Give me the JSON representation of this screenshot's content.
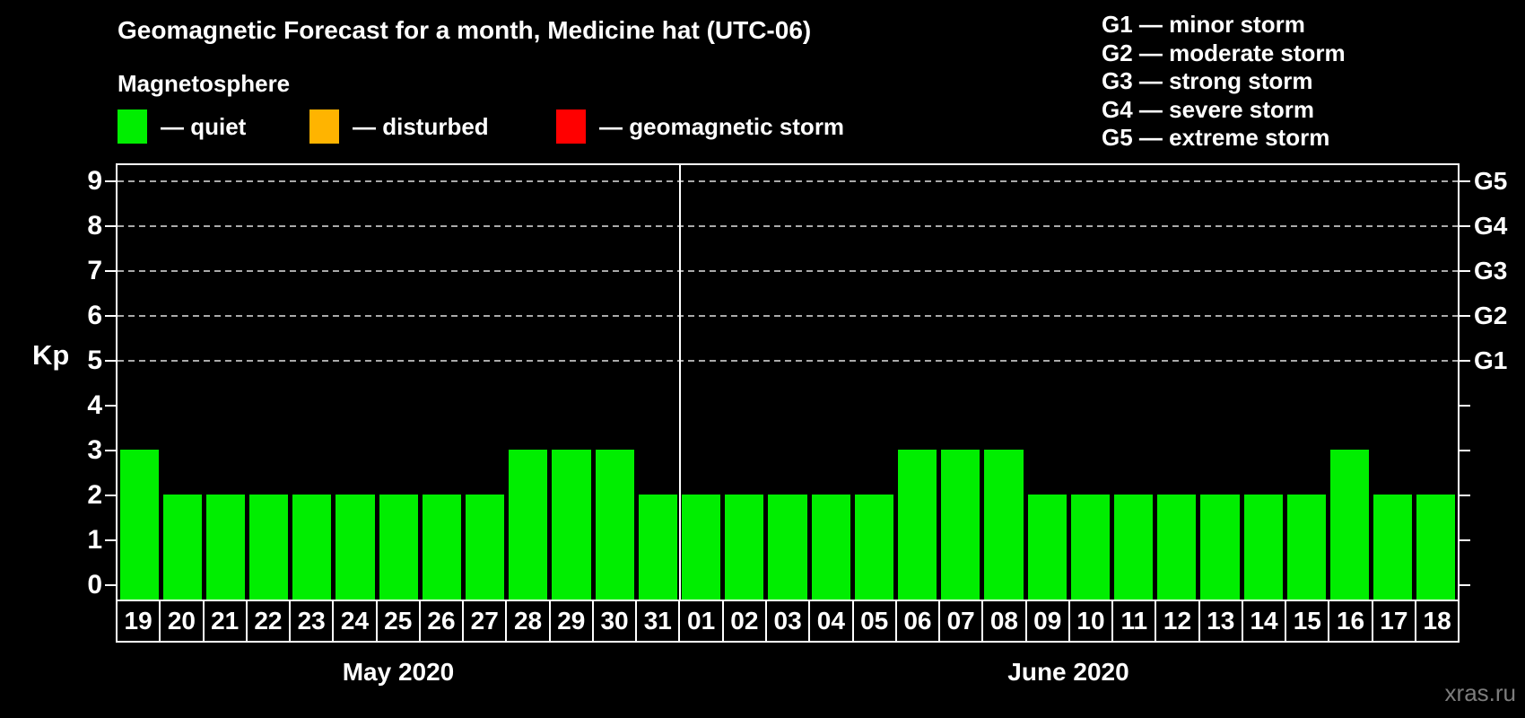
{
  "title": "Geomagnetic Forecast for a month, Medicine hat (UTC-06)",
  "legend": {
    "heading": "Magnetosphere",
    "items": [
      {
        "name": "quiet",
        "label": "— quiet",
        "color": "#00ee00"
      },
      {
        "name": "disturbed",
        "label": "— disturbed",
        "color": "#ffb400"
      },
      {
        "name": "geomagnetic-storm",
        "label": "— geomagnetic storm",
        "color": "#ff0000"
      }
    ]
  },
  "storm_scale": [
    {
      "text": "G1 — minor storm"
    },
    {
      "text": "G2 — moderate storm"
    },
    {
      "text": "G3 — strong storm"
    },
    {
      "text": "G4 — severe storm"
    },
    {
      "text": "G5 — extreme storm"
    }
  ],
  "watermark": "xras.ru",
  "chart_data": {
    "type": "bar",
    "ylabel": "Kp",
    "ylim": [
      0,
      9
    ],
    "yticks": [
      0,
      1,
      2,
      3,
      4,
      5,
      6,
      7,
      8,
      9
    ],
    "grid_values": [
      5,
      6,
      7,
      8,
      9
    ],
    "grid_style": "dashed",
    "right_axis": [
      {
        "value": 5,
        "label": "G1"
      },
      {
        "value": 6,
        "label": "G2"
      },
      {
        "value": 7,
        "label": "G3"
      },
      {
        "value": 8,
        "label": "G4"
      },
      {
        "value": 9,
        "label": "G5"
      }
    ],
    "colors": {
      "quiet": "#00ee00",
      "disturbed": "#ffb400",
      "storm": "#ff0000"
    },
    "color_rule": {
      "quiet_max": 3,
      "disturbed_max": 4
    },
    "groups": [
      {
        "label": "May 2020",
        "days": [
          "19",
          "20",
          "21",
          "22",
          "23",
          "24",
          "25",
          "26",
          "27",
          "28",
          "29",
          "30",
          "31"
        ],
        "values": [
          3,
          2,
          2,
          2,
          2,
          2,
          2,
          2,
          2,
          3,
          3,
          3,
          2
        ]
      },
      {
        "label": "June 2020",
        "days": [
          "01",
          "02",
          "03",
          "04",
          "05",
          "06",
          "07",
          "08",
          "09",
          "10",
          "11",
          "12",
          "13",
          "14",
          "15",
          "16",
          "17",
          "18"
        ],
        "values": [
          2,
          2,
          2,
          2,
          2,
          3,
          3,
          3,
          2,
          2,
          2,
          2,
          2,
          2,
          2,
          3,
          2,
          2
        ]
      }
    ]
  }
}
